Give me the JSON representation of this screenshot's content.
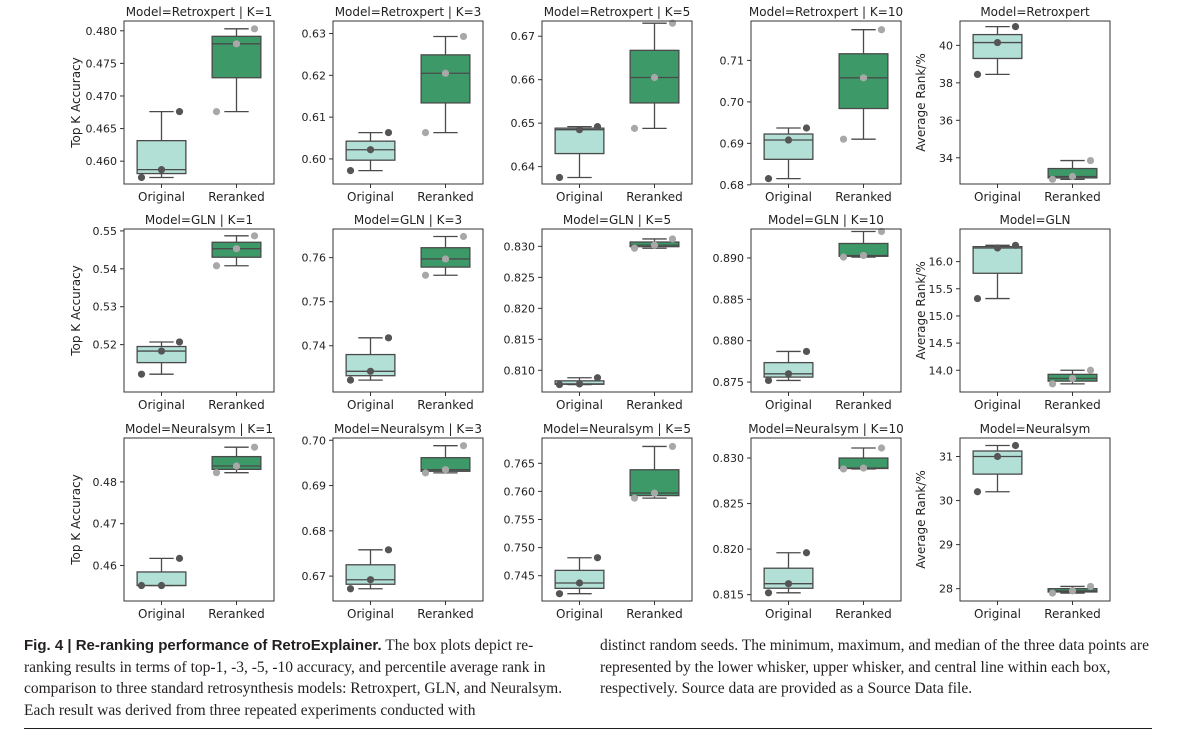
{
  "caption": {
    "label": "Fig. 4 | ",
    "title": "Re-ranking performance of RetroExplainer.",
    "text_left": "The box plots depict re-ranking results in terms of top-1, -3, -5, -10 accuracy, and percentile average rank in comparison to three standard retrosynthesis models: Retroxpert, GLN, and Neuralsym. Each result was derived from three repeated experiments conducted with",
    "text_right": "distinct random seeds. The minimum, maximum, and median of the three data points are represented by the lower whisker, upper whisker, and central line within each box, respectively. Source data are provided as a Source Data file."
  },
  "colors": {
    "original": "#b2dfd6",
    "reranked": "#3d9a68",
    "edge": "#4a4a4a",
    "dot_original": "#555555",
    "dot_reranked": "#a8a8a8"
  },
  "chart_data": [
    {
      "type": "box",
      "title": "Model=Retroxpert | K=1",
      "ylabel": "Top K Accuracy",
      "categories": [
        "Original",
        "Reranked"
      ],
      "ylim": [
        0.4565,
        0.4815
      ],
      "yticks": [
        0.46,
        0.465,
        0.47,
        0.475,
        0.48
      ],
      "yticklabels": [
        "0.460",
        "0.465",
        "0.470",
        "0.475",
        "0.480"
      ],
      "series": [
        {
          "values": [
            0.4575,
            0.4587,
            0.4676
          ]
        },
        {
          "values": [
            0.4676,
            0.478,
            0.4803
          ]
        }
      ]
    },
    {
      "type": "box",
      "title": "Model=Retroxpert | K=3",
      "ylabel": "",
      "categories": [
        "Original",
        "Reranked"
      ],
      "ylim": [
        0.594,
        0.633
      ],
      "yticks": [
        0.6,
        0.61,
        0.62,
        0.63
      ],
      "yticklabels": [
        "0.60",
        "0.61",
        "0.62",
        "0.63"
      ],
      "series": [
        {
          "values": [
            0.5972,
            0.6022,
            0.6063
          ]
        },
        {
          "values": [
            0.6063,
            0.6205,
            0.6293
          ]
        }
      ]
    },
    {
      "type": "box",
      "title": "Model=Retroxpert | K=5",
      "ylabel": "",
      "categories": [
        "Original",
        "Reranked"
      ],
      "ylim": [
        0.636,
        0.6735
      ],
      "yticks": [
        0.64,
        0.65,
        0.66,
        0.67
      ],
      "yticklabels": [
        "0.64",
        "0.65",
        "0.66",
        "0.67"
      ],
      "series": [
        {
          "values": [
            0.6375,
            0.6485,
            0.6492
          ]
        },
        {
          "values": [
            0.6488,
            0.6605,
            0.673
          ]
        }
      ]
    },
    {
      "type": "box",
      "title": "Model=Retroxpert | K=10",
      "ylabel": "",
      "categories": [
        "Original",
        "Reranked"
      ],
      "ylim": [
        0.6802,
        0.7195
      ],
      "yticks": [
        0.68,
        0.69,
        0.7,
        0.71
      ],
      "yticklabels": [
        "0.68",
        "0.69",
        "0.70",
        "0.71"
      ],
      "series": [
        {
          "values": [
            0.6815,
            0.6908,
            0.6937
          ]
        },
        {
          "values": [
            0.691,
            0.7058,
            0.7174
          ]
        }
      ]
    },
    {
      "type": "box",
      "title": "Model=Retroxpert",
      "ylabel": "Average Rank/%",
      "categories": [
        "Original",
        "Reranked"
      ],
      "ylim": [
        32.6,
        41.3
      ],
      "yticks": [
        34,
        36,
        38,
        40
      ],
      "yticklabels": [
        "34",
        "36",
        "38",
        "40"
      ],
      "series": [
        {
          "values": [
            38.45,
            40.15,
            41.0
          ]
        },
        {
          "values": [
            32.85,
            33.0,
            33.85
          ]
        }
      ]
    },
    {
      "type": "box",
      "title": "Model=GLN | K=1",
      "ylabel": "Top K Accuracy",
      "categories": [
        "Original",
        "Reranked"
      ],
      "ylim": [
        0.5075,
        0.5505
      ],
      "yticks": [
        0.52,
        0.53,
        0.54,
        0.55
      ],
      "yticklabels": [
        "0.52",
        "0.53",
        "0.54",
        "0.55"
      ],
      "series": [
        {
          "values": [
            0.5122,
            0.5183,
            0.5207
          ]
        },
        {
          "values": [
            0.5408,
            0.5453,
            0.5487
          ]
        }
      ]
    },
    {
      "type": "box",
      "title": "Model=GLN | K=3",
      "ylabel": "",
      "categories": [
        "Original",
        "Reranked"
      ],
      "ylim": [
        0.7295,
        0.7665
      ],
      "yticks": [
        0.74,
        0.75,
        0.76
      ],
      "yticklabels": [
        "0.74",
        "0.75",
        "0.76"
      ],
      "series": [
        {
          "values": [
            0.7322,
            0.7342,
            0.7418
          ]
        },
        {
          "values": [
            0.756,
            0.7597,
            0.7648
          ]
        }
      ]
    },
    {
      "type": "box",
      "title": "Model=GLN | K=5",
      "ylabel": "",
      "categories": [
        "Original",
        "Reranked"
      ],
      "ylim": [
        0.8065,
        0.8328
      ],
      "yticks": [
        0.81,
        0.815,
        0.82,
        0.825,
        0.83
      ],
      "yticklabels": [
        "0.810",
        "0.815",
        "0.820",
        "0.825",
        "0.830"
      ],
      "series": [
        {
          "values": [
            0.8077,
            0.8078,
            0.8088
          ]
        },
        {
          "values": [
            0.8297,
            0.8302,
            0.8312
          ]
        }
      ]
    },
    {
      "type": "box",
      "title": "Model=GLN | K=10",
      "ylabel": "",
      "categories": [
        "Original",
        "Reranked"
      ],
      "ylim": [
        0.8738,
        0.8935
      ],
      "yticks": [
        0.875,
        0.88,
        0.885,
        0.89
      ],
      "yticklabels": [
        "0.875",
        "0.880",
        "0.885",
        "0.890"
      ],
      "series": [
        {
          "values": [
            0.8752,
            0.876,
            0.8787
          ]
        },
        {
          "values": [
            0.8901,
            0.8903,
            0.8932
          ]
        }
      ]
    },
    {
      "type": "box",
      "title": "Model=GLN",
      "ylabel": "Average Rank/%",
      "categories": [
        "Original",
        "Reranked"
      ],
      "ylim": [
        13.6,
        16.6
      ],
      "yticks": [
        14.0,
        14.5,
        15.0,
        15.5,
        16.0
      ],
      "yticklabels": [
        "14.0",
        "14.5",
        "15.0",
        "15.5",
        "16.0"
      ],
      "series": [
        {
          "values": [
            15.32,
            16.25,
            16.3
          ]
        },
        {
          "values": [
            13.75,
            13.85,
            14.0
          ]
        }
      ]
    },
    {
      "type": "box",
      "title": "Model=Neuralsym | K=1",
      "ylabel": "Top K Accuracy",
      "categories": [
        "Original",
        "Reranked"
      ],
      "ylim": [
        0.4515,
        0.4905
      ],
      "yticks": [
        0.46,
        0.47,
        0.48
      ],
      "yticklabels": [
        "0.46",
        "0.47",
        "0.48"
      ],
      "series": [
        {
          "values": [
            0.4552,
            0.4552,
            0.4617
          ]
        },
        {
          "values": [
            0.4822,
            0.4838,
            0.4883
          ]
        }
      ]
    },
    {
      "type": "box",
      "title": "Model=Neuralsym | K=3",
      "ylabel": "",
      "categories": [
        "Original",
        "Reranked"
      ],
      "ylim": [
        0.6645,
        0.7005
      ],
      "yticks": [
        0.67,
        0.68,
        0.69,
        0.7
      ],
      "yticklabels": [
        "0.67",
        "0.68",
        "0.69",
        "0.70"
      ],
      "series": [
        {
          "values": [
            0.6672,
            0.6692,
            0.6758
          ]
        },
        {
          "values": [
            0.6928,
            0.6935,
            0.6988
          ]
        }
      ]
    },
    {
      "type": "box",
      "title": "Model=Neuralsym | K=5",
      "ylabel": "",
      "categories": [
        "Original",
        "Reranked"
      ],
      "ylim": [
        0.7405,
        0.7695
      ],
      "yticks": [
        0.745,
        0.75,
        0.755,
        0.76,
        0.765
      ],
      "yticklabels": [
        "0.745",
        "0.750",
        "0.755",
        "0.760",
        "0.765"
      ],
      "series": [
        {
          "values": [
            0.7418,
            0.7437,
            0.7482
          ]
        },
        {
          "values": [
            0.7588,
            0.7597,
            0.768
          ]
        }
      ]
    },
    {
      "type": "box",
      "title": "Model=Neuralsym | K=10",
      "ylabel": "",
      "categories": [
        "Original",
        "Reranked"
      ],
      "ylim": [
        0.8143,
        0.8322
      ],
      "yticks": [
        0.815,
        0.82,
        0.825,
        0.83
      ],
      "yticklabels": [
        "0.815",
        "0.820",
        "0.825",
        "0.830"
      ],
      "series": [
        {
          "values": [
            0.8152,
            0.8162,
            0.8196
          ]
        },
        {
          "values": [
            0.8288,
            0.8289,
            0.8311
          ]
        }
      ]
    },
    {
      "type": "box",
      "title": "Model=Neuralsym",
      "ylabel": "Average Rank/%",
      "categories": [
        "Original",
        "Reranked"
      ],
      "ylim": [
        27.72,
        31.42
      ],
      "yticks": [
        28,
        29,
        30,
        31
      ],
      "yticklabels": [
        "28",
        "29",
        "30",
        "31"
      ],
      "series": [
        {
          "values": [
            30.2,
            31.0,
            31.25
          ]
        },
        {
          "values": [
            27.9,
            27.95,
            28.05
          ]
        }
      ]
    }
  ]
}
